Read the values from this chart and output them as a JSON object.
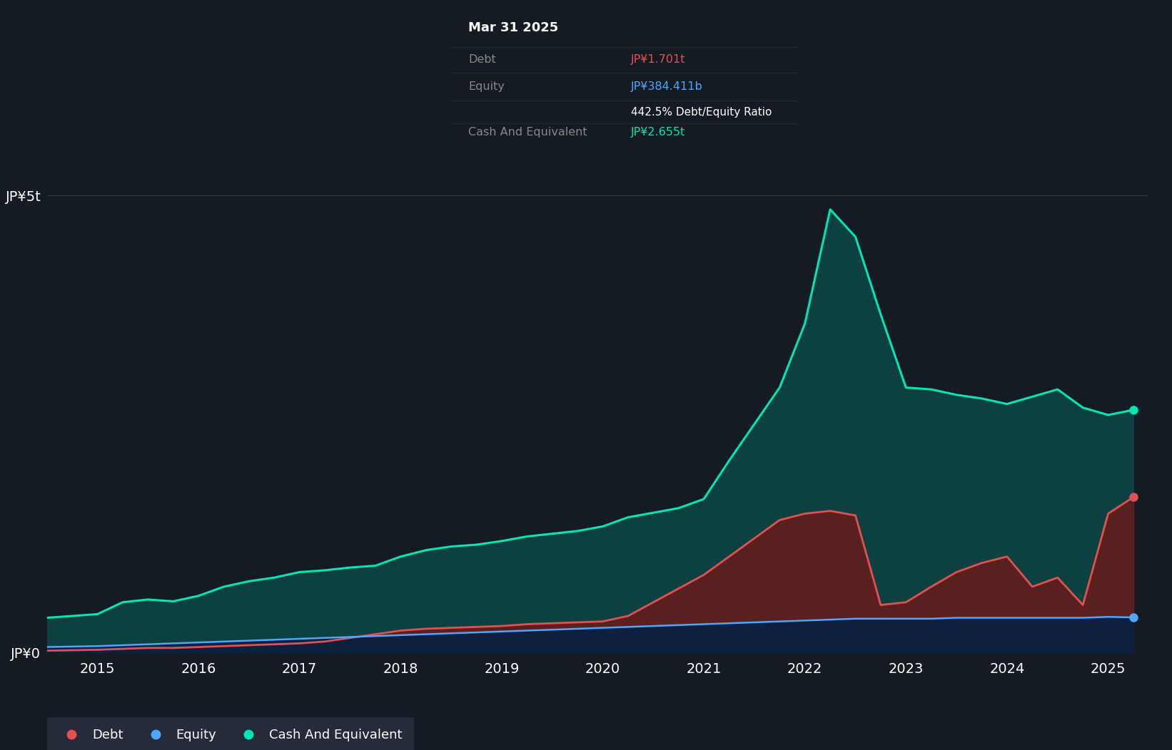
{
  "background_color": "#141b22",
  "plot_bg_color": "#141b22",
  "debt_color": "#e05252",
  "equity_color": "#4da6ff",
  "cash_color": "#00e5b4",
  "debt_fill_color": "#5a2020",
  "cash_fill_color": "#0d4040",
  "equity_fill_color": "#0d2040",
  "ylabel_5t": "JP¥5t",
  "ylabel_0": "JP¥0",
  "xticks": [
    2015,
    2016,
    2017,
    2018,
    2019,
    2020,
    2021,
    2022,
    2023,
    2024,
    2025
  ],
  "tooltip_bg": "#050505",
  "tooltip_title": "Mar 31 2025",
  "tooltip_debt_label": "Debt",
  "tooltip_debt_value": "JP¥1.701t",
  "tooltip_equity_label": "Equity",
  "tooltip_equity_value": "JP¥384.411b",
  "tooltip_ratio": "442.5% Debt/Equity Ratio",
  "tooltip_cash_label": "Cash And Equivalent",
  "tooltip_cash_value": "JP¥2.655t",
  "legend_items": [
    "Debt",
    "Equity",
    "Cash And Equivalent"
  ],
  "legend_colors": [
    "#e05252",
    "#4da6ff",
    "#00e5b4"
  ],
  "dates": [
    2014.5,
    2015.0,
    2015.25,
    2015.5,
    2015.75,
    2016.0,
    2016.25,
    2016.5,
    2016.75,
    2017.0,
    2017.25,
    2017.5,
    2017.75,
    2018.0,
    2018.25,
    2018.5,
    2018.75,
    2019.0,
    2019.25,
    2019.5,
    2019.75,
    2020.0,
    2020.25,
    2020.5,
    2020.75,
    2021.0,
    2021.25,
    2021.5,
    2021.75,
    2022.0,
    2022.25,
    2022.5,
    2022.75,
    2023.0,
    2023.25,
    2023.5,
    2023.75,
    2024.0,
    2024.25,
    2024.5,
    2024.75,
    2025.0,
    2025.25
  ],
  "cash": [
    0.38,
    0.42,
    0.55,
    0.58,
    0.56,
    0.62,
    0.72,
    0.78,
    0.82,
    0.88,
    0.9,
    0.93,
    0.95,
    1.05,
    1.12,
    1.16,
    1.18,
    1.22,
    1.27,
    1.3,
    1.33,
    1.38,
    1.48,
    1.53,
    1.58,
    1.68,
    2.1,
    2.5,
    2.9,
    3.6,
    4.85,
    4.55,
    3.7,
    2.9,
    2.88,
    2.82,
    2.78,
    2.72,
    2.8,
    2.88,
    2.68,
    2.6,
    2.655
  ],
  "debt": [
    0.02,
    0.03,
    0.04,
    0.05,
    0.05,
    0.06,
    0.07,
    0.08,
    0.09,
    0.1,
    0.12,
    0.16,
    0.2,
    0.24,
    0.26,
    0.27,
    0.28,
    0.29,
    0.31,
    0.32,
    0.33,
    0.34,
    0.4,
    0.55,
    0.7,
    0.85,
    1.05,
    1.25,
    1.45,
    1.52,
    1.55,
    1.5,
    0.52,
    0.55,
    0.72,
    0.88,
    0.98,
    1.05,
    0.72,
    0.82,
    0.52,
    1.52,
    1.701
  ],
  "equity": [
    0.06,
    0.07,
    0.08,
    0.09,
    0.1,
    0.11,
    0.12,
    0.13,
    0.14,
    0.15,
    0.16,
    0.17,
    0.18,
    0.19,
    0.2,
    0.21,
    0.22,
    0.23,
    0.24,
    0.25,
    0.26,
    0.27,
    0.28,
    0.29,
    0.3,
    0.31,
    0.32,
    0.33,
    0.34,
    0.35,
    0.36,
    0.37,
    0.37,
    0.37,
    0.37,
    0.38,
    0.38,
    0.38,
    0.38,
    0.38,
    0.38,
    0.39,
    0.384
  ],
  "ylim": [
    0,
    5.5
  ],
  "xlim": [
    2014.5,
    2025.4
  ]
}
